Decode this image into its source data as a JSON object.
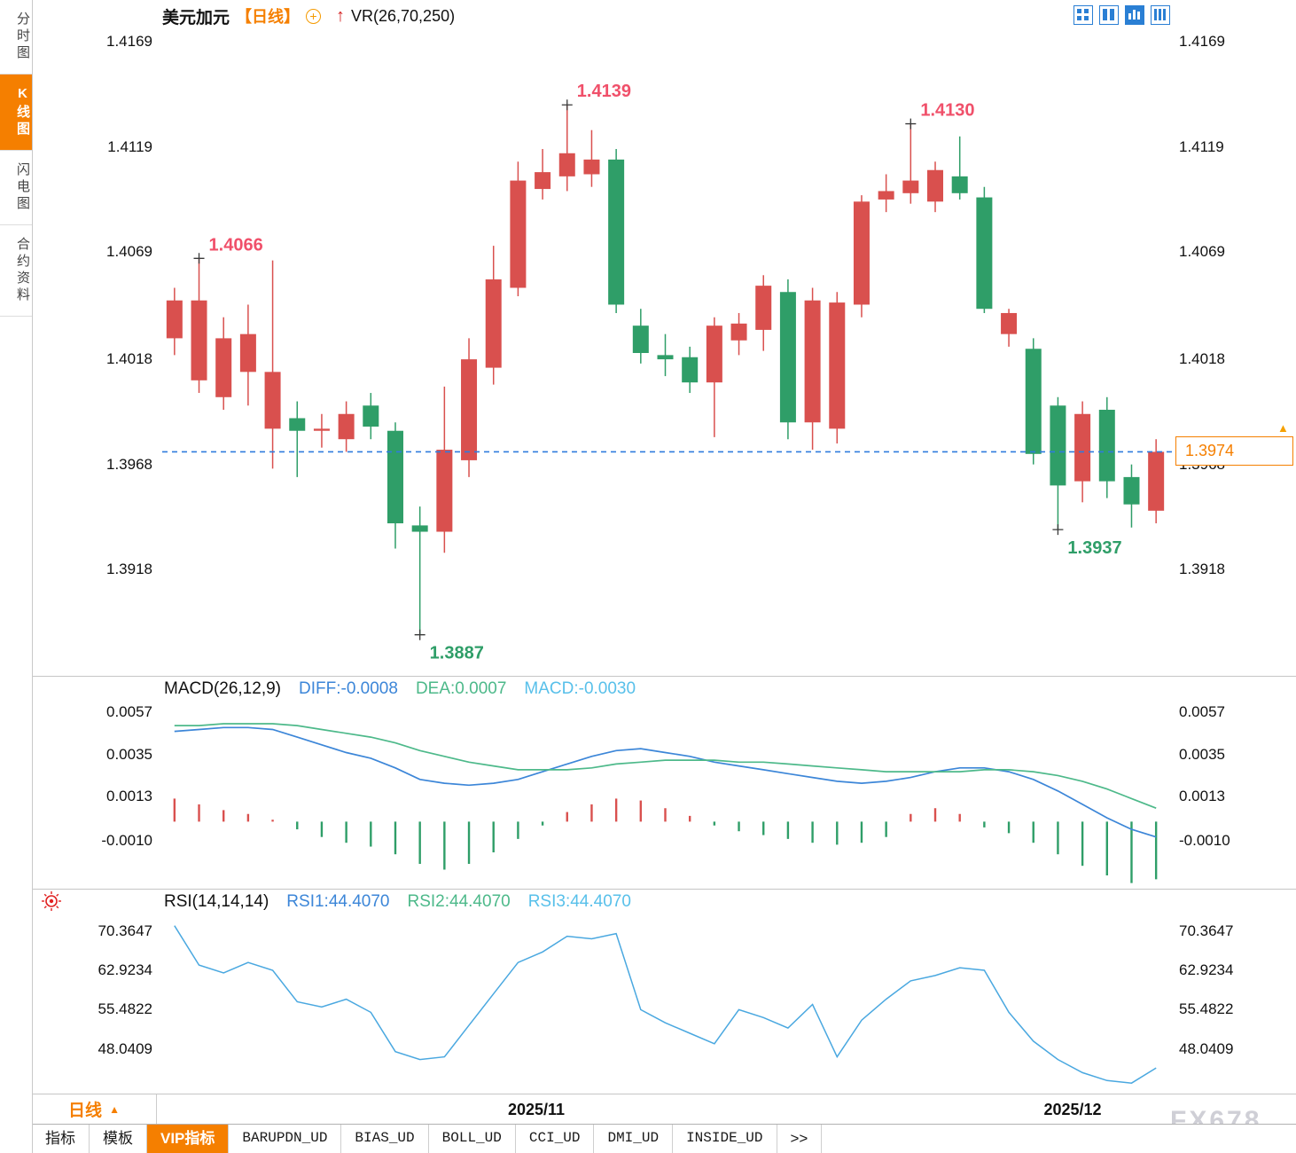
{
  "header": {
    "symbol": "美元加元",
    "period_tag": "【日线】",
    "indicator_label": "VR(26,70,250)"
  },
  "icons": {
    "circle_plus": "+",
    "up_arrow": "↑",
    "period_triangle": "▲",
    "price_triangle": "▲"
  },
  "sidebar": {
    "tabs": [
      {
        "label": "分时图",
        "name": "sidebar-tab-time-share",
        "active": false
      },
      {
        "label": "K线图",
        "name": "sidebar-tab-kline",
        "active": true
      },
      {
        "label": "闪电图",
        "name": "sidebar-tab-lightning",
        "active": false
      },
      {
        "label": "合约资料",
        "name": "sidebar-tab-contract-info",
        "active": false
      }
    ]
  },
  "colors": {
    "up": "#d9504e",
    "down": "#2f9e68",
    "accent_orange": "#f57f00",
    "price_line": "#2f7bdd",
    "diff_line": "#3c86d8",
    "dea_line": "#4db98a",
    "rsi_line": "#4aa8e0",
    "marker_high": "#f0506a",
    "marker_low": "#2f9e68",
    "icon_blue": "#2a7fd4",
    "sun_red": "#e02020"
  },
  "chart_data": {
    "type": "candlestick",
    "symbol": "美元加元",
    "period": "日线",
    "y_axis_labels": [
      "1.4169",
      "1.4119",
      "1.4069",
      "1.4018",
      "1.3968",
      "1.3918"
    ],
    "x_axis_labels": [
      "2025/11",
      "2025/12"
    ],
    "current_price": "1.3974",
    "ohlc_format": "open,high,low,close",
    "candles": [
      [
        1.4028,
        1.4052,
        1.402,
        1.4046
      ],
      [
        1.4008,
        1.4066,
        1.4002,
        1.4046
      ],
      [
        1.4,
        1.4038,
        1.3994,
        1.4028
      ],
      [
        1.4012,
        1.4044,
        1.3996,
        1.403
      ],
      [
        1.3985,
        1.4065,
        1.3966,
        1.4012
      ],
      [
        1.399,
        1.3998,
        1.3962,
        1.3984
      ],
      [
        1.3984,
        1.3992,
        1.3976,
        1.3985
      ],
      [
        1.398,
        1.3998,
        1.3974,
        1.3992
      ],
      [
        1.3996,
        1.4002,
        1.398,
        1.3986
      ],
      [
        1.3984,
        1.3988,
        1.3928,
        1.394
      ],
      [
        1.3939,
        1.3948,
        1.3887,
        1.3936
      ],
      [
        1.3936,
        1.4005,
        1.3926,
        1.3975
      ],
      [
        1.397,
        1.4028,
        1.3962,
        1.4018
      ],
      [
        1.4014,
        1.4072,
        1.4006,
        1.4056
      ],
      [
        1.4052,
        1.4112,
        1.4048,
        1.4103
      ],
      [
        1.4099,
        1.4118,
        1.4094,
        1.4107
      ],
      [
        1.4105,
        1.4139,
        1.4098,
        1.4116
      ],
      [
        1.4106,
        1.4127,
        1.41,
        1.4113
      ],
      [
        1.4113,
        1.4118,
        1.404,
        1.4044
      ],
      [
        1.4034,
        1.4042,
        1.4016,
        1.4021
      ],
      [
        1.402,
        1.403,
        1.401,
        1.4018
      ],
      [
        1.4019,
        1.4024,
        1.4002,
        1.4007
      ],
      [
        1.4007,
        1.4038,
        1.3981,
        1.4034
      ],
      [
        1.4027,
        1.404,
        1.402,
        1.4035
      ],
      [
        1.4032,
        1.4058,
        1.4022,
        1.4053
      ],
      [
        1.405,
        1.4056,
        1.398,
        1.3988
      ],
      [
        1.3988,
        1.4052,
        1.3975,
        1.4046
      ],
      [
        1.3985,
        1.405,
        1.3978,
        1.4045
      ],
      [
        1.4044,
        1.4096,
        1.4038,
        1.4093
      ],
      [
        1.4094,
        1.4106,
        1.4088,
        1.4098
      ],
      [
        1.4097,
        1.413,
        1.4092,
        1.4103
      ],
      [
        1.4093,
        1.4112,
        1.4088,
        1.4108
      ],
      [
        1.4105,
        1.4124,
        1.4094,
        1.4097
      ],
      [
        1.4095,
        1.41,
        1.404,
        1.4042
      ],
      [
        1.403,
        1.4042,
        1.4024,
        1.404
      ],
      [
        1.4023,
        1.4028,
        1.3968,
        1.3973
      ],
      [
        1.3996,
        1.4,
        1.3937,
        1.3958
      ],
      [
        1.396,
        1.3998,
        1.395,
        1.3992
      ],
      [
        1.3994,
        1.4,
        1.3952,
        1.396
      ],
      [
        1.3962,
        1.3968,
        1.3938,
        1.3949
      ],
      [
        1.3946,
        1.398,
        1.394,
        1.3974
      ]
    ],
    "markers": [
      {
        "index": 1,
        "price": 1.4066,
        "type": "high",
        "label": "1.4066"
      },
      {
        "index": 10,
        "price": 1.3887,
        "type": "low",
        "label": "1.3887"
      },
      {
        "index": 16,
        "price": 1.4139,
        "type": "high",
        "label": "1.4139"
      },
      {
        "index": 30,
        "price": 1.413,
        "type": "high",
        "label": "1.4130"
      },
      {
        "index": 36,
        "price": 1.3937,
        "type": "low",
        "label": "1.3937"
      }
    ],
    "macd": {
      "title": "MACD(26,12,9)",
      "diff_label": "DIFF:-0.0008",
      "dea_label": "DEA:0.0007",
      "macd_label": "MACD:-0.0030",
      "axis_labels": [
        "0.0057",
        "0.0035",
        "0.0013",
        "-0.0010"
      ],
      "diff": [
        0.0047,
        0.0048,
        0.0049,
        0.0049,
        0.0048,
        0.0044,
        0.004,
        0.0036,
        0.0033,
        0.0028,
        0.0022,
        0.002,
        0.0019,
        0.002,
        0.0022,
        0.0026,
        0.003,
        0.0034,
        0.0037,
        0.0038,
        0.0036,
        0.0034,
        0.0031,
        0.0029,
        0.0027,
        0.0025,
        0.0023,
        0.0021,
        0.002,
        0.0021,
        0.0023,
        0.0026,
        0.0028,
        0.0028,
        0.0026,
        0.0022,
        0.0016,
        0.0009,
        0.0002,
        -0.0004,
        -0.0008
      ],
      "dea": [
        0.005,
        0.005,
        0.0051,
        0.0051,
        0.0051,
        0.005,
        0.0048,
        0.0046,
        0.0044,
        0.0041,
        0.0037,
        0.0034,
        0.0031,
        0.0029,
        0.0027,
        0.0027,
        0.0027,
        0.0028,
        0.003,
        0.0031,
        0.0032,
        0.0032,
        0.0032,
        0.0031,
        0.0031,
        0.003,
        0.0029,
        0.0028,
        0.0027,
        0.0026,
        0.0026,
        0.0026,
        0.0026,
        0.0027,
        0.0027,
        0.0026,
        0.0024,
        0.0021,
        0.0017,
        0.0012,
        0.0007
      ],
      "bars": [
        0.0012,
        0.0009,
        0.0006,
        0.0004,
        0.0001,
        -0.0004,
        -0.0008,
        -0.0011,
        -0.0013,
        -0.0017,
        -0.0022,
        -0.0025,
        -0.0022,
        -0.0016,
        -0.0009,
        -0.0002,
        0.0005,
        0.0009,
        0.0012,
        0.0011,
        0.0007,
        0.0003,
        -0.0002,
        -0.0005,
        -0.0007,
        -0.0009,
        -0.0011,
        -0.0012,
        -0.0011,
        -0.0008,
        0.0004,
        0.0007,
        0.0004,
        -0.0003,
        -0.0006,
        -0.0011,
        -0.0017,
        -0.0023,
        -0.0028,
        -0.0032,
        -0.003
      ]
    },
    "rsi": {
      "title": "RSI(14,14,14)",
      "rsi1_label": "RSI1:44.4070",
      "rsi2_label": "RSI2:44.4070",
      "rsi3_label": "RSI3:44.4070",
      "axis_labels": [
        "70.3647",
        "62.9234",
        "55.4822",
        "48.0409"
      ],
      "values": [
        71.5,
        64.0,
        62.5,
        64.5,
        63.0,
        57.0,
        56.0,
        57.5,
        55.0,
        47.5,
        46.0,
        46.5,
        52.5,
        58.5,
        64.5,
        66.5,
        69.5,
        69.0,
        70.0,
        55.5,
        53.0,
        51.0,
        49.0,
        55.5,
        54.0,
        52.0,
        56.5,
        46.5,
        53.5,
        57.5,
        61.0,
        62.0,
        63.5,
        63.0,
        55.0,
        49.5,
        46.0,
        43.5,
        42.0,
        41.5,
        44.4
      ]
    }
  },
  "bottom": {
    "period_box": "日线",
    "tabs": [
      {
        "label": "指标",
        "name": "bottom-tab-indicators",
        "active": false,
        "mono": false
      },
      {
        "label": "模板",
        "name": "bottom-tab-templates",
        "active": false,
        "mono": false
      },
      {
        "label": "VIP指标",
        "name": "bottom-tab-vip-indicators",
        "active": true,
        "mono": false
      },
      {
        "label": "BARUPDN_UD",
        "name": "bottom-tab-barupdn-ud",
        "active": false,
        "mono": true
      },
      {
        "label": "BIAS_UD",
        "name": "bottom-tab-bias-ud",
        "active": false,
        "mono": true
      },
      {
        "label": "BOLL_UD",
        "name": "bottom-tab-boll-ud",
        "active": false,
        "mono": true
      },
      {
        "label": "CCI_UD",
        "name": "bottom-tab-cci-ud",
        "active": false,
        "mono": true
      },
      {
        "label": "DMI_UD",
        "name": "bottom-tab-dmi-ud",
        "active": false,
        "mono": true
      },
      {
        "label": "INSIDE_UD",
        "name": "bottom-tab-inside-ud",
        "active": false,
        "mono": true
      },
      {
        "label": ">>",
        "name": "bottom-tab-more",
        "active": false,
        "mono": false
      }
    ],
    "watermark": "FX678"
  }
}
